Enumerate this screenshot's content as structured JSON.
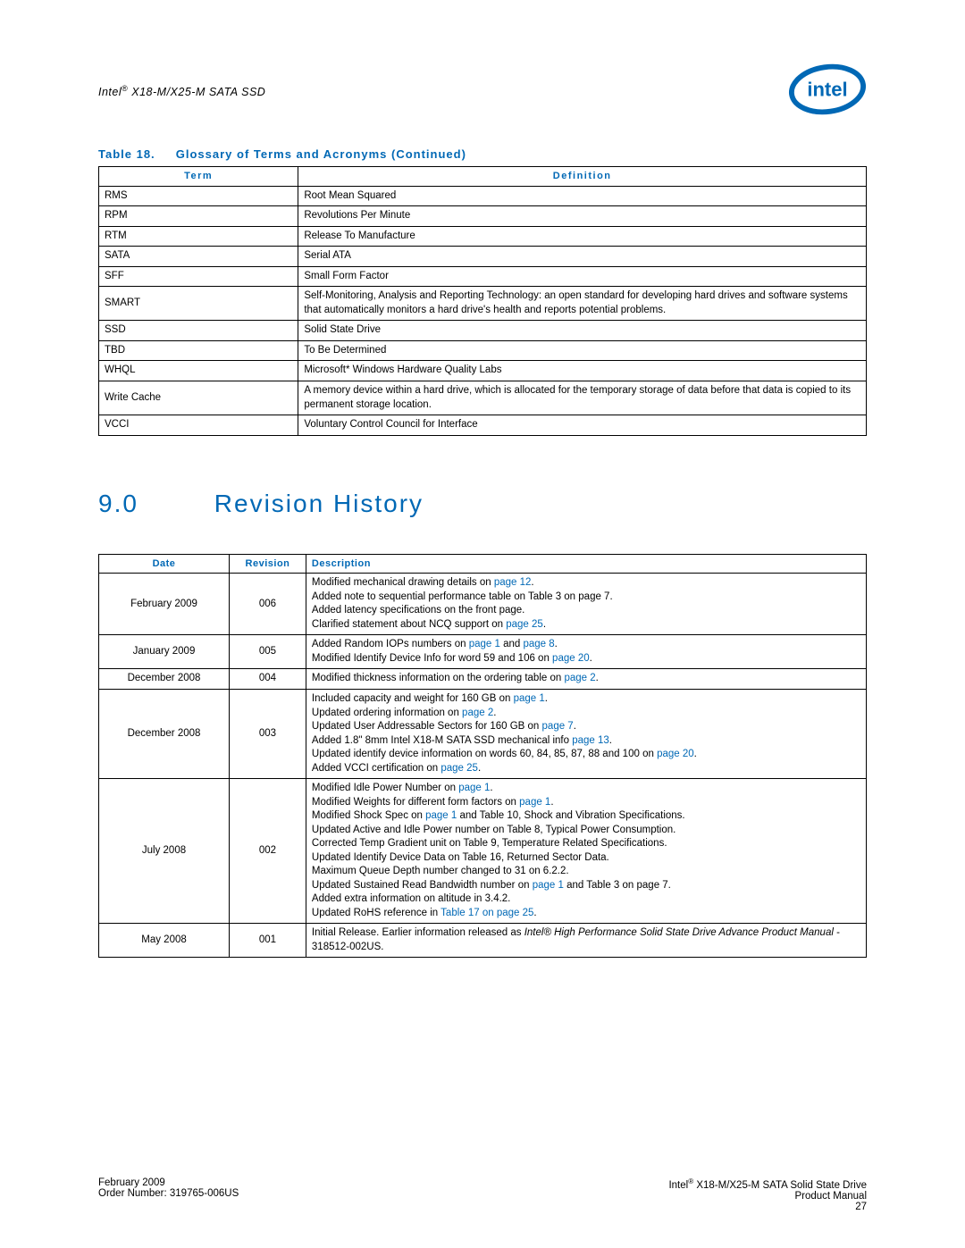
{
  "colors": {
    "intel_blue": "#0068b5",
    "text": "#000000",
    "background": "#ffffff",
    "border": "#000000"
  },
  "header": {
    "product_line": "Intel® X18-M/X25-M SATA SSD",
    "logo_alt": "intel"
  },
  "glossary_table": {
    "caption_prefix": "Table 18.",
    "caption_title": "Glossary of Terms and Acronyms (Continued)",
    "columns": [
      "Term",
      "Definition"
    ],
    "rows": [
      {
        "term": "RMS",
        "def": "Root Mean Squared"
      },
      {
        "term": "RPM",
        "def": "Revolutions Per Minute"
      },
      {
        "term": "RTM",
        "def": "Release To Manufacture"
      },
      {
        "term": "SATA",
        "def": "Serial ATA"
      },
      {
        "term": "SFF",
        "def": "Small Form Factor"
      },
      {
        "term": "SMART",
        "def": "Self-Monitoring, Analysis and Reporting Technology: an open standard for developing hard drives and software systems that automatically monitors a hard drive's health and reports potential problems."
      },
      {
        "term": "SSD",
        "def": "Solid State Drive"
      },
      {
        "term": "TBD",
        "def": "To Be Determined"
      },
      {
        "term": "WHQL",
        "def": "Microsoft* Windows Hardware Quality Labs"
      },
      {
        "term": "Write Cache",
        "def": "A memory device within a hard drive, which is allocated for the temporary storage of data before that data is copied to its permanent storage location."
      },
      {
        "term": "VCCI",
        "def": "Voluntary Control Council for Interface"
      }
    ]
  },
  "section": {
    "number": "9.0",
    "title": "Revision History"
  },
  "revhist_table": {
    "columns": [
      "Date",
      "Revision",
      "Description"
    ],
    "rows": [
      {
        "date": "February 2009",
        "rev": "006",
        "desc": [
          {
            "pre": "Modified mechanical drawing details on ",
            "link": "page 12",
            "post": "."
          },
          {
            "pre": "Added note to sequential performance table on Table 3 on page 7.",
            "link": "",
            "post": ""
          },
          {
            "pre": "Added latency specifications on the front page.",
            "link": "",
            "post": ""
          },
          {
            "pre": "Clarified statement about NCQ support on ",
            "link": "page 25",
            "post": "."
          }
        ]
      },
      {
        "date": "January 2009",
        "rev": "005",
        "desc": [
          {
            "pre": "Added Random IOPs numbers on ",
            "link": "page 1",
            "mid": " and ",
            "link2": "page 8",
            "post": "."
          },
          {
            "pre": "Modified Identify Device Info for word 59 and 106 on ",
            "link": "page 20",
            "post": "."
          }
        ]
      },
      {
        "date": "December 2008",
        "rev": "004",
        "desc": [
          {
            "pre": "Modified thickness information on the ordering table on ",
            "link": "page 2",
            "post": "."
          }
        ]
      },
      {
        "date": "December 2008",
        "rev": "003",
        "desc": [
          {
            "pre": "Included capacity and weight for 160 GB on ",
            "link": "page 1",
            "post": "."
          },
          {
            "pre": "Updated ordering information on ",
            "link": "page 2",
            "post": "."
          },
          {
            "pre": "Updated User Addressable Sectors for 160 GB on ",
            "link": "page 7",
            "post": "."
          },
          {
            "pre": "Added 1.8\" 8mm Intel X18-M SATA SSD mechanical info ",
            "link": "page 13",
            "post": "."
          },
          {
            "pre": "Updated identify device information on words 60, 84, 85, 87, 88 and 100 on ",
            "link": "page 20",
            "post": "."
          },
          {
            "pre": "Added VCCI certification on ",
            "link": "page 25",
            "post": "."
          }
        ]
      },
      {
        "date": "July 2008",
        "rev": "002",
        "desc": [
          {
            "pre": "Modified Idle Power Number on ",
            "link": "page 1",
            "post": "."
          },
          {
            "pre": "Modified Weights for different form factors on ",
            "link": "page 1",
            "post": "."
          },
          {
            "pre": "Modified Shock Spec on ",
            "link": "page 1",
            "post": " and Table 10, Shock and Vibration Specifications."
          },
          {
            "pre": "Updated Active and Idle Power number on Table 8, Typical Power Consumption.",
            "link": "",
            "post": ""
          },
          {
            "pre": "Corrected Temp Gradient unit on Table 9, Temperature Related Specifications.",
            "link": "",
            "post": ""
          },
          {
            "pre": "Updated Identify Device Data on Table 16, Returned Sector Data.",
            "link": "",
            "post": ""
          },
          {
            "pre": "Maximum Queue Depth number changed to 31 on 6.2.2.",
            "link": "",
            "post": ""
          },
          {
            "pre": "Updated Sustained Read Bandwidth number on ",
            "link": "page 1",
            "post": " and Table 3 on page 7."
          },
          {
            "pre": "Added extra information on altitude in 3.4.2.",
            "link": "",
            "post": ""
          },
          {
            "pre": "Updated RoHS reference in ",
            "link": "Table 17 on page 25",
            "post": "."
          }
        ]
      },
      {
        "date": "May 2008",
        "rev": "001",
        "desc": [
          {
            "pre": "Initial Release. Earlier information released as ",
            "italic": "Intel® High Performance Solid State Drive Advance Product Manual",
            "post": " - 318512-002US."
          }
        ]
      }
    ]
  },
  "footer": {
    "left_line1": "February 2009",
    "left_line2": "Order Number: 319765-006US",
    "right_line1": "Intel® X18-M/X25-M SATA Solid State Drive",
    "right_line2": "Product Manual",
    "right_line3": "27"
  }
}
